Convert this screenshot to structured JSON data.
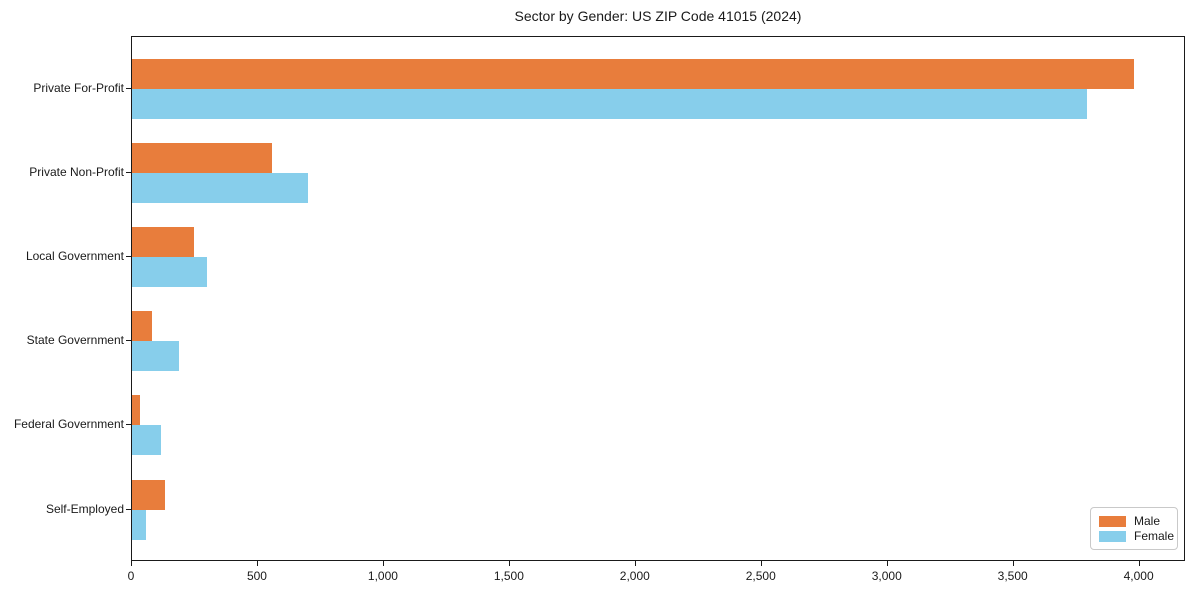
{
  "page": {
    "background": "#ffffff"
  },
  "chart_data": {
    "type": "bar",
    "orientation": "horizontal",
    "title": "Sector by Gender: US ZIP Code 41015 (2024)",
    "categories": [
      "Private For-Profit",
      "Private Non-Profit",
      "Local Government",
      "State Government",
      "Federal Government",
      "Self-Employed"
    ],
    "series": [
      {
        "name": "Male",
        "color": "#e87d3c",
        "values": [
          3985,
          555,
          245,
          80,
          30,
          130
        ]
      },
      {
        "name": "Female",
        "color": "#87ceeb",
        "values": [
          3800,
          700,
          300,
          185,
          115,
          55
        ]
      }
    ],
    "xlabel": "",
    "ylabel": "",
    "xlim": [
      0,
      4184
    ],
    "xticks": [
      0,
      500,
      1000,
      1500,
      2000,
      2500,
      3000,
      3500,
      4000
    ],
    "xtick_labels": [
      "0",
      "500",
      "1,000",
      "1,500",
      "2,000",
      "2,500",
      "3,000",
      "3,500",
      "4,000"
    ],
    "grid": false,
    "legend": {
      "position": "lower right",
      "entries": [
        "Male",
        "Female"
      ]
    },
    "frame_color": "#1a1a1a"
  }
}
